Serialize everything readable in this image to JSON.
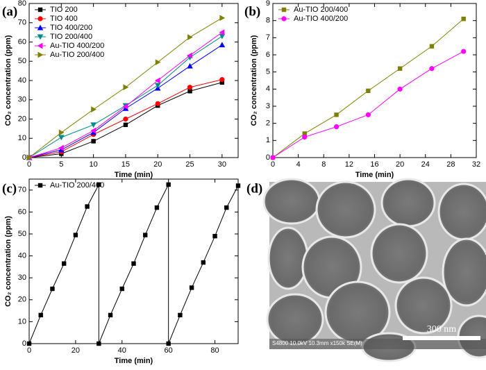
{
  "chart_data": [
    {
      "type": "line",
      "panel_label": "(a)",
      "x_label": "Time (min)",
      "y_label": "CO₂ concentration (ppm)",
      "x": [
        0,
        5,
        10,
        15,
        20,
        25,
        30
      ],
      "xlim": [
        0,
        32.5
      ],
      "xticks": [
        0,
        5,
        10,
        15,
        20,
        25,
        30
      ],
      "ylim": [
        0,
        80
      ],
      "yticks": [
        0,
        10,
        20,
        30,
        40,
        50,
        60,
        70,
        80
      ],
      "legend": "upper left",
      "series": [
        {
          "name": "TIO 200",
          "color": "#000000",
          "marker": "square",
          "values": [
            0,
            2,
            8.5,
            17,
            27,
            34.5,
            39
          ]
        },
        {
          "name": "TIO 400",
          "color": "#ff0000",
          "marker": "circle",
          "values": [
            0,
            3,
            12,
            20,
            28,
            36.5,
            40.5
          ]
        },
        {
          "name": "TIO 400/200",
          "color": "#0000ff",
          "marker": "triangle-up",
          "values": [
            0,
            4,
            13,
            25.5,
            36,
            47.5,
            58.5
          ]
        },
        {
          "name": "TIO 200/400",
          "color": "#008b8b",
          "marker": "triangle-down",
          "values": [
            0,
            10.5,
            17,
            27,
            37.5,
            52,
            63
          ]
        },
        {
          "name": "Au-TIO 400/200",
          "color": "#ff00ff",
          "marker": "triangle-left",
          "values": [
            0,
            5,
            14,
            26.5,
            40,
            53,
            65
          ]
        },
        {
          "name": "Au-TIO 200/400",
          "color": "#808000",
          "marker": "triangle-right",
          "values": [
            0,
            13,
            25,
            36.5,
            49.5,
            62.5,
            72.5
          ]
        }
      ]
    },
    {
      "type": "line",
      "panel_label": "(b)",
      "x_label": "Time (min)",
      "y_label": "CO₂ concentration (ppm)",
      "x": [
        0,
        5,
        10,
        15,
        20,
        25,
        30
      ],
      "xlim": [
        0,
        32
      ],
      "xticks": [
        0,
        4,
        8,
        12,
        16,
        20,
        24,
        28,
        32
      ],
      "ylim": [
        0,
        9
      ],
      "yticks": [
        0,
        1,
        2,
        3,
        4,
        5,
        6,
        7,
        8,
        9
      ],
      "legend": "upper left",
      "series": [
        {
          "name": "Au-TIO 200/400",
          "color": "#808000",
          "marker": "square",
          "values": [
            0,
            1.4,
            2.5,
            3.9,
            5.2,
            6.5,
            8.1
          ]
        },
        {
          "name": "Au-TIO 400/200",
          "color": "#ff00ff",
          "marker": "circle",
          "values": [
            0,
            1.2,
            1.8,
            2.5,
            4.0,
            5.2,
            6.2
          ]
        }
      ]
    },
    {
      "type": "line",
      "panel_label": "(c)",
      "x_label": "Time (min)",
      "y_label": "CO₂ concentration (ppm)",
      "x": [
        0,
        5,
        10,
        15,
        20,
        25,
        30,
        30,
        35,
        40,
        45,
        50,
        55,
        60,
        60,
        65,
        70,
        75,
        80,
        85,
        90
      ],
      "xlim": [
        0,
        90
      ],
      "xticks": [
        0,
        20,
        40,
        60,
        80
      ],
      "ylim": [
        0,
        75
      ],
      "yticks": [
        0,
        10,
        20,
        30,
        40,
        50,
        60,
        70
      ],
      "legend": "upper left",
      "series": [
        {
          "name": "Au-TIO 200/400",
          "color": "#000000",
          "marker": "square",
          "values": [
            0,
            13,
            25,
            36.5,
            49.5,
            62.5,
            72.5,
            0,
            13,
            25,
            36.5,
            49.5,
            62,
            72.5,
            0,
            13,
            25.5,
            37,
            49,
            62,
            72
          ]
        }
      ]
    },
    {
      "type": "image",
      "panel_label": "(d)",
      "caption": "S4800 10.0kV 10.3mm x150k SE(M)",
      "scale_bar": "300 nm"
    }
  ]
}
